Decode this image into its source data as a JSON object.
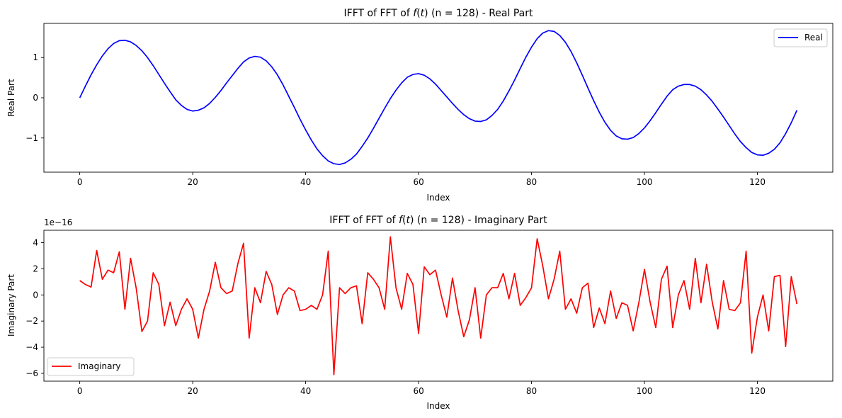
{
  "chart_data": [
    {
      "type": "line",
      "title": "IFFT of FFT of f(t) (n = 128) - Real Part",
      "title_parts": {
        "prefix": "IFFT of FFT of ",
        "italic": "f",
        "paren_open": "(",
        "italic2": "t",
        "paren_close": ")",
        "suffix": " (n = 128) - Real Part"
      },
      "xlabel": "Index",
      "ylabel": "Real Part",
      "xlim": [
        -6.35,
        133.35
      ],
      "ylim": [
        -1.85,
        1.85
      ],
      "xticks": [
        0,
        20,
        40,
        60,
        80,
        100,
        120
      ],
      "xtick_labels": [
        "0",
        "20",
        "40",
        "60",
        "80",
        "100",
        "120"
      ],
      "yticks": [
        -1,
        0,
        1
      ],
      "ytick_labels": [
        "−1",
        "0",
        "1"
      ],
      "legend": {
        "label": "Real",
        "position": "upper right"
      },
      "color": "#0000ff",
      "series": [
        {
          "name": "Real",
          "values": [
            0.0,
            0.29,
            0.57,
            0.82,
            1.04,
            1.22,
            1.35,
            1.42,
            1.43,
            1.39,
            1.3,
            1.17,
            1.0,
            0.8,
            0.58,
            0.36,
            0.15,
            -0.05,
            -0.19,
            -0.29,
            -0.33,
            -0.31,
            -0.25,
            -0.14,
            0.01,
            0.18,
            0.37,
            0.55,
            0.73,
            0.89,
            0.99,
            1.03,
            1.01,
            0.92,
            0.77,
            0.57,
            0.32,
            0.04,
            -0.24,
            -0.53,
            -0.8,
            -1.05,
            -1.27,
            -1.44,
            -1.57,
            -1.64,
            -1.66,
            -1.62,
            -1.53,
            -1.4,
            -1.21,
            -1.0,
            -0.76,
            -0.51,
            -0.26,
            -0.02,
            0.19,
            0.37,
            0.51,
            0.58,
            0.6,
            0.56,
            0.47,
            0.34,
            0.18,
            0.02,
            -0.14,
            -0.29,
            -0.42,
            -0.52,
            -0.58,
            -0.59,
            -0.55,
            -0.44,
            -0.29,
            -0.08,
            0.17,
            0.44,
            0.73,
            1.01,
            1.26,
            1.47,
            1.61,
            1.67,
            1.65,
            1.55,
            1.38,
            1.15,
            0.87,
            0.56,
            0.24,
            -0.07,
            -0.36,
            -0.61,
            -0.81,
            -0.95,
            -1.02,
            -1.03,
            -0.99,
            -0.89,
            -0.75,
            -0.57,
            -0.37,
            -0.16,
            0.04,
            0.2,
            0.29,
            0.33,
            0.33,
            0.29,
            0.2,
            0.07,
            -0.09,
            -0.28,
            -0.48,
            -0.69,
            -0.9,
            -1.09,
            -1.24,
            -1.36,
            -1.42,
            -1.43,
            -1.38,
            -1.28,
            -1.12,
            -0.89,
            -0.62,
            -0.31
          ]
        }
      ]
    },
    {
      "type": "line",
      "title": "IFFT of FFT of f(t) (n = 128) - Imaginary Part",
      "title_parts": {
        "prefix": "IFFT of FFT of ",
        "italic": "f",
        "paren_open": "(",
        "italic2": "t",
        "paren_close": ")",
        "suffix": " (n = 128) - Imaginary Part"
      },
      "xlabel": "Index",
      "ylabel": "Imaginary Part",
      "scale_label": "1e−16",
      "xlim": [
        -6.35,
        133.35
      ],
      "ylim": [
        -6.6,
        4.95
      ],
      "xticks": [
        0,
        20,
        40,
        60,
        80,
        100,
        120
      ],
      "xtick_labels": [
        "0",
        "20",
        "40",
        "60",
        "80",
        "100",
        "120"
      ],
      "yticks": [
        -6,
        -4,
        -2,
        0,
        2,
        4
      ],
      "ytick_labels": [
        "−6",
        "−4",
        "−2",
        "0",
        "2",
        "4"
      ],
      "legend": {
        "label": "Imaginary",
        "position": "lower left"
      },
      "color": "#ff0000",
      "series": [
        {
          "name": "Imaginary",
          "values": [
            1.1,
            0.8,
            0.6,
            3.4,
            1.2,
            1.9,
            1.7,
            3.3,
            -1.1,
            2.8,
            0.5,
            -2.8,
            -2.0,
            1.7,
            0.8,
            -2.35,
            -0.55,
            -2.35,
            -1.1,
            -0.3,
            -1.1,
            -3.3,
            -1.1,
            0.3,
            2.5,
            0.55,
            0.1,
            0.3,
            2.4,
            3.95,
            -3.3,
            0.55,
            -0.6,
            1.8,
            0.8,
            -1.5,
            0.0,
            0.55,
            0.3,
            -1.2,
            -1.1,
            -0.8,
            -1.1,
            0.0,
            3.35,
            -6.1,
            0.55,
            0.1,
            0.55,
            0.7,
            -2.2,
            1.7,
            1.2,
            0.55,
            -1.1,
            4.45,
            0.55,
            -1.1,
            1.65,
            0.8,
            -2.95,
            2.15,
            1.55,
            1.9,
            0.0,
            -1.7,
            1.3,
            -1.2,
            -3.2,
            -1.9,
            0.55,
            -3.3,
            0.0,
            0.55,
            0.55,
            1.65,
            -0.3,
            1.65,
            -0.8,
            -0.2,
            0.55,
            4.3,
            2.2,
            -0.3,
            1.2,
            3.35,
            -1.1,
            -0.3,
            -1.4,
            0.55,
            0.9,
            -2.5,
            -1.0,
            -2.2,
            0.3,
            -1.8,
            -0.6,
            -0.8,
            -2.75,
            -0.6,
            1.95,
            -0.55,
            -2.5,
            1.2,
            2.2,
            -2.5,
            0.0,
            1.1,
            -1.1,
            2.8,
            -0.6,
            2.35,
            -0.55,
            -2.6,
            1.1,
            -1.1,
            -1.2,
            -0.6,
            3.35,
            -4.45,
            -1.7,
            0.0,
            -2.75,
            1.4,
            1.5,
            -3.95,
            1.4,
            -0.7
          ]
        }
      ]
    }
  ]
}
